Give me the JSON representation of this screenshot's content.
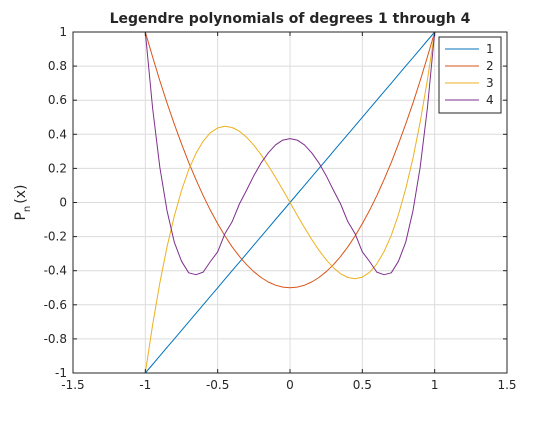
{
  "chart_data": {
    "type": "line",
    "title": "Legendre polynomials of degrees 1 through 4",
    "xlabel": "",
    "ylabel": "P",
    "ylabel_subscript": "n",
    "ylabel_suffix": "(x)",
    "xlim": [
      -1.5,
      1.5
    ],
    "ylim": [
      -1,
      1
    ],
    "xticks": [
      -1.5,
      -1,
      -0.5,
      0,
      0.5,
      1,
      1.5
    ],
    "xtick_labels": [
      "-1.5",
      "-1",
      "-0.5",
      "0",
      "0.5",
      "1",
      "1.5"
    ],
    "yticks": [
      -1,
      -0.8,
      -0.6,
      -0.4,
      -0.2,
      0,
      0.2,
      0.4,
      0.6,
      0.8,
      1
    ],
    "ytick_labels": [
      "-1",
      "-0.8",
      "-0.6",
      "-0.4",
      "-0.2",
      "0",
      "0.2",
      "0.4",
      "0.6",
      "0.8",
      "1"
    ],
    "grid": true,
    "legend_position": "top-right",
    "x": [
      -1,
      -0.95,
      -0.9,
      -0.85,
      -0.8,
      -0.75,
      -0.7,
      -0.65,
      -0.6,
      -0.55,
      -0.5,
      -0.45,
      -0.4,
      -0.35,
      -0.3,
      -0.25,
      -0.2,
      -0.15,
      -0.1,
      -0.05,
      0,
      0.05,
      0.1,
      0.15,
      0.2,
      0.25,
      0.3,
      0.35,
      0.4,
      0.45,
      0.5,
      0.55,
      0.6,
      0.65,
      0.7,
      0.75,
      0.8,
      0.85,
      0.9,
      0.95,
      1
    ],
    "series": [
      {
        "name": "1",
        "color": "#0072bd",
        "values": [
          -1,
          -0.95,
          -0.9,
          -0.85,
          -0.8,
          -0.75,
          -0.7,
          -0.65,
          -0.6,
          -0.55,
          -0.5,
          -0.45,
          -0.4,
          -0.35,
          -0.3,
          -0.25,
          -0.2,
          -0.15,
          -0.1,
          -0.05,
          0,
          0.05,
          0.1,
          0.15,
          0.2,
          0.25,
          0.3,
          0.35,
          0.4,
          0.45,
          0.5,
          0.55,
          0.6,
          0.65,
          0.7,
          0.75,
          0.8,
          0.85,
          0.9,
          0.95,
          1
        ]
      },
      {
        "name": "2",
        "color": "#d95319",
        "values": [
          1,
          0.854,
          0.715,
          0.584,
          0.46,
          0.344,
          0.235,
          0.134,
          0.04,
          -0.046,
          -0.125,
          -0.196,
          -0.26,
          -0.316,
          -0.365,
          -0.406,
          -0.44,
          -0.466,
          -0.485,
          -0.496,
          -0.5,
          -0.496,
          -0.485,
          -0.466,
          -0.44,
          -0.406,
          -0.365,
          -0.316,
          -0.26,
          -0.196,
          -0.125,
          -0.046,
          0.04,
          0.134,
          0.235,
          0.344,
          0.46,
          0.584,
          0.715,
          0.854,
          1
        ]
      },
      {
        "name": "3",
        "color": "#edb120",
        "values": [
          -1,
          -0.7184,
          -0.4725,
          -0.2603,
          -0.08,
          0.0703,
          0.1925,
          0.2884,
          0.36,
          0.4091,
          0.4375,
          0.447,
          0.44,
          0.4184,
          0.3825,
          0.3359,
          0.28,
          0.2166,
          0.1475,
          0.0747,
          0,
          -0.0747,
          -0.1475,
          -0.2166,
          -0.28,
          -0.3359,
          -0.3825,
          -0.4184,
          -0.44,
          -0.447,
          -0.4375,
          -0.4091,
          -0.36,
          -0.2884,
          -0.1925,
          -0.0703,
          0.08,
          0.2603,
          0.4725,
          0.7184,
          1
        ]
      },
      {
        "name": "4",
        "color": "#7e2f8e",
        "values": [
          1,
          0.5541,
          0.2079,
          -0.0477,
          -0.233,
          -0.3441,
          -0.4121,
          -0.4236,
          -0.408,
          -0.3462,
          -0.2891,
          -0.183,
          -0.113,
          -0.0086,
          0.0729,
          0.1571,
          0.232,
          0.2916,
          0.3379,
          0.3657,
          0.375,
          0.3657,
          0.3379,
          0.2916,
          0.232,
          0.1571,
          0.0729,
          -0.0086,
          -0.113,
          -0.183,
          -0.2891,
          -0.3462,
          -0.408,
          -0.4236,
          -0.4121,
          -0.3441,
          -0.233,
          -0.0477,
          0.2079,
          0.5541,
          1
        ]
      }
    ]
  }
}
